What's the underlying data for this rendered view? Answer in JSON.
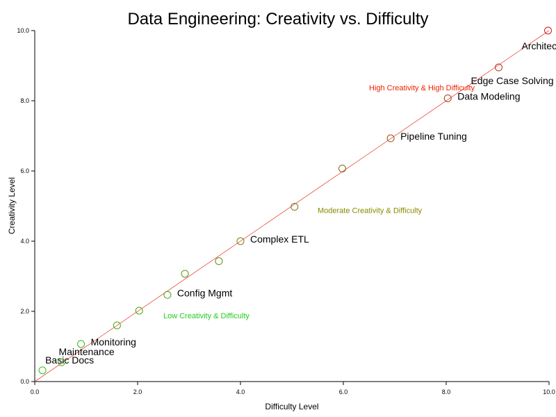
{
  "chart_data": {
    "type": "scatter",
    "title": "Data Engineering: Creativity vs. Difficulty",
    "xlabel": "Difficulty Level",
    "ylabel": "Creativity Level",
    "xlim": [
      0,
      10
    ],
    "ylim": [
      0,
      10
    ],
    "xticks": [
      "0.0",
      "2.0",
      "4.0",
      "6.0",
      "8.0",
      "10.0"
    ],
    "yticks": [
      "0.0",
      "2.0",
      "4.0",
      "6.0",
      "8.0",
      "10.0"
    ],
    "grid": false,
    "trend_line": {
      "from": [
        0,
        0
      ],
      "to": [
        10,
        10
      ],
      "color": "#e8493b"
    },
    "points": [
      {
        "x": 0.15,
        "y": 0.32,
        "label": "Basic Docs"
      },
      {
        "x": 0.52,
        "y": 0.55,
        "label": "Maintenance"
      },
      {
        "x": 0.9,
        "y": 1.07,
        "label": "Monitoring"
      },
      {
        "x": 1.6,
        "y": 1.6,
        "label": ""
      },
      {
        "x": 2.03,
        "y": 2.02,
        "label": ""
      },
      {
        "x": 2.58,
        "y": 2.47,
        "label": "Config Mgmt"
      },
      {
        "x": 2.92,
        "y": 3.07,
        "label": ""
      },
      {
        "x": 3.58,
        "y": 3.43,
        "label": ""
      },
      {
        "x": 4.0,
        "y": 4.0,
        "label": "Complex ETL"
      },
      {
        "x": 5.05,
        "y": 4.98,
        "label": ""
      },
      {
        "x": 5.98,
        "y": 6.07,
        "label": ""
      },
      {
        "x": 6.92,
        "y": 6.93,
        "label": "Pipeline Tuning"
      },
      {
        "x": 8.03,
        "y": 8.07,
        "label": "Data Modeling"
      },
      {
        "x": 9.02,
        "y": 8.95,
        "label": "Edge Case Solving"
      },
      {
        "x": 9.98,
        "y": 10.0,
        "label": "Architecture"
      }
    ],
    "annotations": [
      {
        "text": "Low Creativity & Difficulty",
        "x": 2.5,
        "y": 1.8,
        "color": "#22cc22"
      },
      {
        "text": "Moderate Creativity & Difficulty",
        "x": 5.5,
        "y": 4.8,
        "color": "#888800"
      },
      {
        "text": "High Creativity & High Difficulty",
        "x": 6.5,
        "y": 8.3,
        "color": "#ee2200"
      }
    ]
  }
}
